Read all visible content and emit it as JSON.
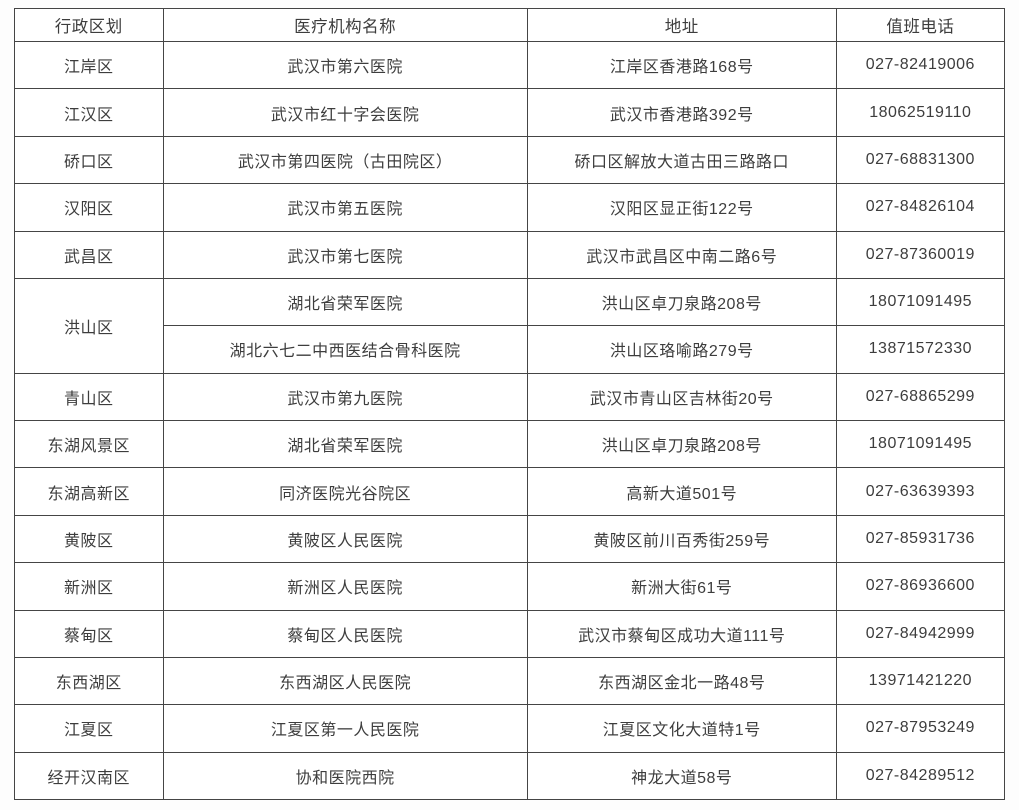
{
  "colors": {
    "page-bg": "#fdfdfd",
    "border-color": "#454545",
    "text-color": "#3d3d3d",
    "cell-bg": "#ffffff"
  },
  "table": {
    "headers": [
      "行政区划",
      "医疗机构名称",
      "地址",
      "值班电话"
    ],
    "rows": [
      {
        "district": "江岸区",
        "rowspan": 1,
        "name": "武汉市第六医院",
        "address": "江岸区香港路168号",
        "phone": "027-82419006"
      },
      {
        "district": "江汉区",
        "rowspan": 1,
        "name": "武汉市红十字会医院",
        "address": "武汉市香港路392号",
        "phone": "18062519110"
      },
      {
        "district": "硚口区",
        "rowspan": 1,
        "name": "武汉市第四医院（古田院区）",
        "address": "硚口区解放大道古田三路路口",
        "phone": "027-68831300"
      },
      {
        "district": "汉阳区",
        "rowspan": 1,
        "name": "武汉市第五医院",
        "address": "汉阳区显正街122号",
        "phone": "027-84826104"
      },
      {
        "district": "武昌区",
        "rowspan": 1,
        "name": "武汉市第七医院",
        "address": "武汉市武昌区中南二路6号",
        "phone": "027-87360019"
      },
      {
        "district": "洪山区",
        "rowspan": 2,
        "name": "湖北省荣军医院",
        "address": "洪山区卓刀泉路208号",
        "phone": "18071091495"
      },
      {
        "district": null,
        "rowspan": 0,
        "name": "湖北六七二中西医结合骨科医院",
        "address": "洪山区珞喻路279号",
        "phone": "13871572330"
      },
      {
        "district": "青山区",
        "rowspan": 1,
        "name": "武汉市第九医院",
        "address": "武汉市青山区吉林街20号",
        "phone": "027-68865299"
      },
      {
        "district": "东湖风景区",
        "rowspan": 1,
        "name": "湖北省荣军医院",
        "address": "洪山区卓刀泉路208号",
        "phone": "18071091495"
      },
      {
        "district": "东湖高新区",
        "rowspan": 1,
        "name": "同济医院光谷院区",
        "address": "高新大道501号",
        "phone": "027-63639393"
      },
      {
        "district": "黄陂区",
        "rowspan": 1,
        "name": "黄陂区人民医院",
        "address": "黄陂区前川百秀街259号",
        "phone": "027-85931736"
      },
      {
        "district": "新洲区",
        "rowspan": 1,
        "name": "新洲区人民医院",
        "address": "新洲大街61号",
        "phone": "027-86936600"
      },
      {
        "district": "蔡甸区",
        "rowspan": 1,
        "name": "蔡甸区人民医院",
        "address": "武汉市蔡甸区成功大道111号",
        "phone": "027-84942999"
      },
      {
        "district": "东西湖区",
        "rowspan": 1,
        "name": "东西湖区人民医院",
        "address": "东西湖区金北一路48号",
        "phone": "13971421220"
      },
      {
        "district": "江夏区",
        "rowspan": 1,
        "name": "江夏区第一人民医院",
        "address": "江夏区文化大道特1号",
        "phone": "027-87953249"
      },
      {
        "district": "经开汉南区",
        "rowspan": 1,
        "name": "协和医院西院",
        "address": "神龙大道58号",
        "phone": "027-84289512"
      }
    ]
  }
}
